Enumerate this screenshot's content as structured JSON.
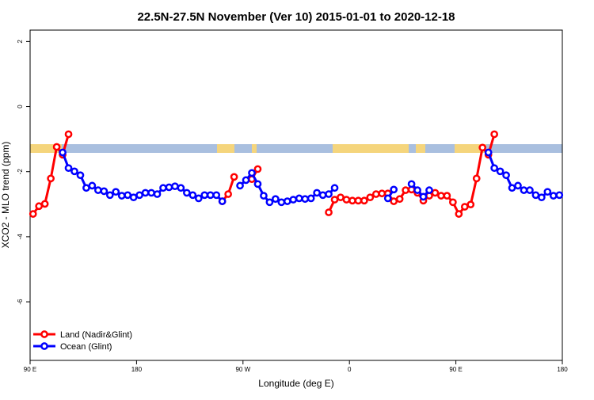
{
  "chart_data": {
    "type": "line",
    "title": "22.5N-27.5N November (Ver 10)   2015-01-01 to 2020-12-18",
    "x_label": "Longitude (deg E)",
    "y_label": "XCO2 - MLO trend (ppm)",
    "x": [
      92.5,
      97.5,
      102.5,
      107.5,
      112.5,
      117.5,
      122.5,
      127.5,
      132.5,
      137.5,
      142.5,
      147.5,
      152.5,
      157.5,
      162.5,
      167.5,
      172.5,
      177.5,
      182.5,
      187.5,
      192.5,
      197.5,
      202.5,
      207.5,
      212.5,
      217.5,
      222.5,
      227.5,
      232.5,
      237.5,
      242.5,
      247.5,
      252.5,
      257.5,
      262.5,
      267.5,
      272.5,
      277.5,
      282.5,
      287.5,
      292.5,
      297.5,
      302.5,
      307.5,
      312.5,
      317.5,
      322.5,
      327.5,
      332.5,
      337.5,
      342.5,
      347.5,
      352.5,
      357.5,
      362.5,
      367.5,
      372.5,
      377.5,
      382.5,
      387.5,
      392.5,
      397.5,
      402.5,
      407.5,
      412.5,
      417.5,
      422.5,
      427.5,
      432.5,
      437.5,
      442.5,
      447.5,
      452.5,
      457.5,
      462.5,
      467.5,
      472.5,
      477.5,
      482.5,
      487.5,
      492.5,
      497.5,
      502.5,
      507.5,
      512.5,
      517.5,
      522.5,
      527.5,
      532.5,
      537.5
    ],
    "series": [
      {
        "name": "Land (Nadir&Glint)",
        "color": "#ff0000",
        "values": [
          -3.3,
          -3.06,
          -2.99,
          -2.21,
          -1.24,
          -1.48,
          -0.85,
          null,
          null,
          null,
          null,
          null,
          null,
          null,
          null,
          null,
          null,
          null,
          null,
          null,
          null,
          null,
          null,
          null,
          null,
          null,
          null,
          null,
          null,
          null,
          null,
          null,
          -2.91,
          -2.69,
          -2.16,
          null,
          null,
          -2.23,
          -1.92,
          null,
          null,
          null,
          null,
          null,
          null,
          null,
          null,
          null,
          null,
          null,
          -3.25,
          -2.86,
          -2.79,
          -2.86,
          -2.89,
          -2.89,
          -2.89,
          -2.79,
          -2.69,
          -2.67,
          -2.67,
          -2.91,
          -2.84,
          -2.57,
          -2.55,
          -2.65,
          -2.89,
          -2.74,
          -2.65,
          -2.74,
          -2.74,
          -2.94,
          -3.3,
          -3.08,
          -3.01,
          -2.21,
          -1.26,
          -1.48,
          -0.85,
          null,
          null,
          null,
          null,
          null,
          null,
          null,
          null,
          null,
          null,
          null
        ]
      },
      {
        "name": "Ocean (Glint)",
        "color": "#0000ff",
        "values": [
          null,
          null,
          null,
          null,
          null,
          -1.41,
          -1.89,
          -1.99,
          -2.11,
          -2.5,
          -2.43,
          -2.57,
          -2.6,
          -2.72,
          -2.62,
          -2.74,
          -2.72,
          -2.79,
          -2.72,
          -2.65,
          -2.65,
          -2.69,
          -2.5,
          -2.48,
          -2.45,
          -2.5,
          -2.65,
          -2.72,
          -2.82,
          -2.72,
          -2.72,
          -2.72,
          -2.91,
          null,
          null,
          -2.43,
          -2.26,
          -2.04,
          -2.38,
          -2.74,
          -2.94,
          -2.84,
          -2.94,
          -2.91,
          -2.86,
          -2.82,
          -2.84,
          -2.82,
          -2.65,
          -2.72,
          -2.69,
          -2.5,
          null,
          null,
          null,
          null,
          null,
          null,
          null,
          null,
          -2.82,
          -2.55,
          null,
          null,
          -2.38,
          -2.57,
          -2.77,
          -2.57,
          null,
          null,
          null,
          null,
          null,
          null,
          null,
          null,
          null,
          -1.41,
          -1.89,
          -1.99,
          -2.11,
          -2.5,
          -2.43,
          -2.57,
          -2.57,
          -2.72,
          -2.79,
          -2.62,
          -2.74,
          -2.72
        ]
      }
    ],
    "xlim": [
      90,
      540
    ],
    "xticks": [
      {
        "value": 90,
        "label": "90 E"
      },
      180,
      {
        "value": 270,
        "label": "90 W"
      },
      {
        "value": 360,
        "label": "0"
      },
      {
        "value": 450,
        "label": "90 E"
      },
      {
        "value": 540,
        "label": "180"
      }
    ],
    "ylim": [
      -7.8,
      2.35
    ],
    "yticks": [
      2,
      0,
      -2,
      -4,
      -6
    ],
    "legend": "bottom-left"
  }
}
